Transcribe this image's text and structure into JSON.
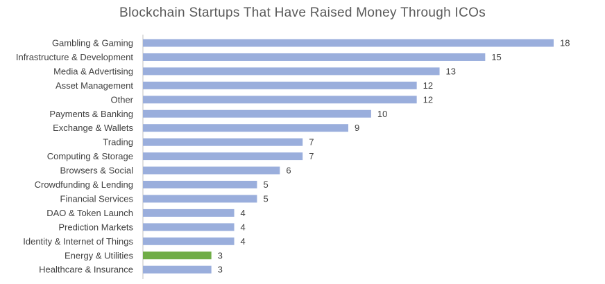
{
  "chart_data": {
    "type": "bar",
    "orientation": "horizontal",
    "title": "Blockchain Startups That Have Raised Money Through ICOs",
    "xlabel": "",
    "ylabel": "",
    "xlim": [
      0,
      18
    ],
    "grid": false,
    "legend": "none",
    "categories": [
      "Gambling & Gaming",
      "Infrastructure & Development",
      "Media & Advertising",
      "Asset Management",
      "Other",
      "Payments & Banking",
      "Exchange & Wallets",
      "Trading",
      "Computing & Storage",
      "Browsers & Social",
      "Crowdfunding & Lending",
      "Financial Services",
      "DAO & Token Launch",
      "Prediction Markets",
      "Identity & Internet of Things",
      "Energy & Utilities",
      "Healthcare & Insurance"
    ],
    "values": [
      18,
      15,
      13,
      12,
      12,
      10,
      9,
      7,
      7,
      6,
      5,
      5,
      4,
      4,
      4,
      3,
      3
    ],
    "highlight_category": "Energy & Utilities",
    "colors": {
      "bar": "#9aaedc",
      "bar_highlight": "#70ad47",
      "axis": "#bfbfbf",
      "text": "#404040",
      "title": "#595959"
    }
  }
}
